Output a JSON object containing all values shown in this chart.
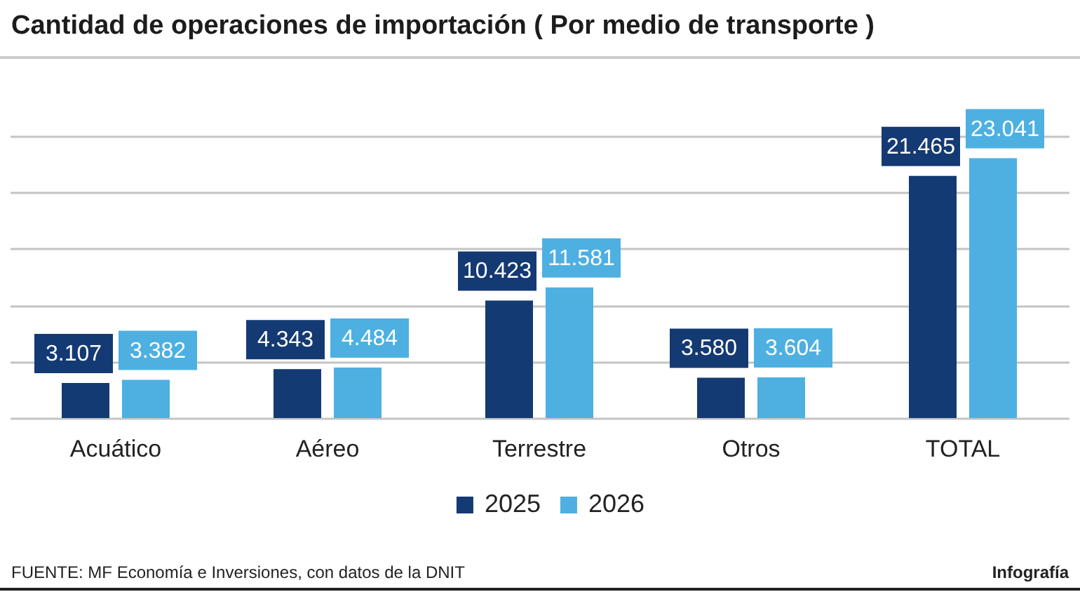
{
  "chart_data": {
    "type": "bar",
    "title": "Cantidad de operaciones de importación ( Por medio de transporte )",
    "categories": [
      "Acuático",
      "Aéreo",
      "Terrestre",
      "Otros",
      "TOTAL"
    ],
    "series": [
      {
        "name": "2025",
        "color": "#143a73",
        "values": [
          3107,
          4343,
          10423,
          3580,
          21465
        ],
        "value_labels": [
          "3.107",
          "4.343",
          "10.423",
          "3.580",
          "21.465"
        ]
      },
      {
        "name": "2026",
        "color": "#4eb0e1",
        "values": [
          3382,
          4484,
          11581,
          3604,
          23041
        ],
        "value_labels": [
          "3.382",
          "4.484",
          "11.581",
          "3.604",
          "23.041"
        ]
      }
    ],
    "ylim": [
      0,
      25000
    ],
    "yticks": [
      {
        "value": 0,
        "label": null
      },
      {
        "value": 5000,
        "label": null
      },
      {
        "value": 10000,
        "label": null
      },
      {
        "value": 15000,
        "label": null
      },
      {
        "value": 20000,
        "label": null
      },
      {
        "value": 25000,
        "label": null
      }
    ],
    "grid": "y",
    "legend": "bottom",
    "tick_labels": "x",
    "annotations": [
      "FUENTE: MF Economía e Inversiones, con datos de la DNIT",
      "Infografía"
    ]
  }
}
